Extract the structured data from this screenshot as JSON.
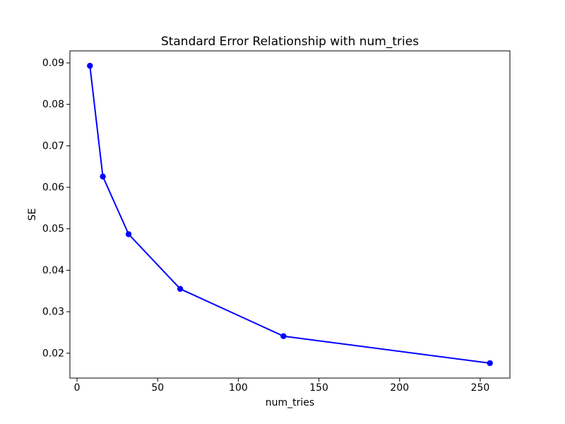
{
  "chart_data": {
    "type": "line",
    "title": "Standard Error Relationship with num_tries",
    "xlabel": "num_tries",
    "ylabel": "SE",
    "series": [
      {
        "name": "SE",
        "x": [
          8,
          16,
          32,
          64,
          128,
          256
        ],
        "y": [
          0.0893,
          0.0626,
          0.0487,
          0.0355,
          0.0241,
          0.0176
        ],
        "line_color": "#0000ff",
        "marker": "circle"
      }
    ],
    "xlim": [
      -4.4,
      268.4
    ],
    "ylim": [
      0.014,
      0.0929
    ],
    "xticks": [
      0,
      50,
      100,
      150,
      200,
      250
    ],
    "xtick_labels": [
      "0",
      "50",
      "100",
      "150",
      "200",
      "250"
    ],
    "yticks": [
      0.02,
      0.03,
      0.04,
      0.05,
      0.06,
      0.07,
      0.08,
      0.09
    ],
    "ytick_labels": [
      "0.02",
      "0.03",
      "0.04",
      "0.05",
      "0.06",
      "0.07",
      "0.08",
      "0.09"
    ],
    "grid": false,
    "legend_position": "none",
    "background_color": "#ffffff",
    "spine_color": "#000000"
  }
}
